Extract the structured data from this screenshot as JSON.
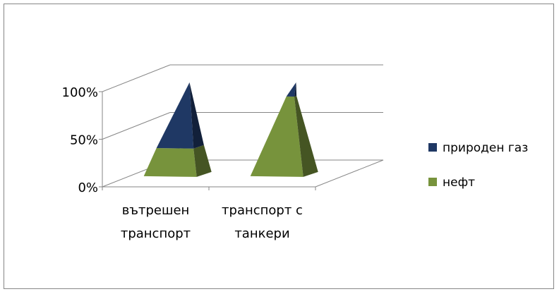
{
  "chart_data": {
    "type": "bar",
    "subtype": "3d-stacked-100-pyramid",
    "categories": [
      [
        "вътрешен",
        "транспорт"
      ],
      [
        "транспорт с",
        "танкери"
      ]
    ],
    "series": [
      {
        "name": "нефт",
        "values": [
          30,
          85
        ],
        "color": "#77933C"
      },
      {
        "name": "природен газ",
        "values": [
          70,
          15
        ],
        "color": "#1F3864"
      }
    ],
    "y_ticks": [
      "0%",
      "50%",
      "100%"
    ],
    "ylim": [
      0,
      100
    ],
    "legend_position": "right",
    "grid": true
  }
}
